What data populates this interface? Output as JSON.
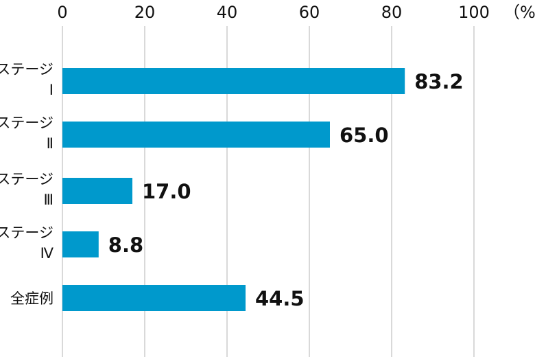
{
  "chart_data": {
    "type": "bar",
    "orientation": "horizontal",
    "categories": [
      [
        "ステージ",
        "Ⅰ"
      ],
      [
        "ステージ",
        "Ⅱ"
      ],
      [
        "ステージ",
        "Ⅲ"
      ],
      [
        "ステージ",
        "Ⅳ"
      ],
      [
        "全症例"
      ]
    ],
    "values": [
      83.2,
      65.0,
      17.0,
      8.8,
      44.5
    ],
    "value_labels": [
      "83.2",
      "65.0",
      "17.0",
      "8.8",
      "44.5"
    ],
    "xticks": [
      0,
      20,
      40,
      60,
      80,
      100
    ],
    "xlim": [
      0,
      100
    ],
    "unit_label": "（%）",
    "axis_position": "top",
    "grid": true,
    "bar_color": "#0099cc",
    "grid_color": "#d9d9d9"
  }
}
